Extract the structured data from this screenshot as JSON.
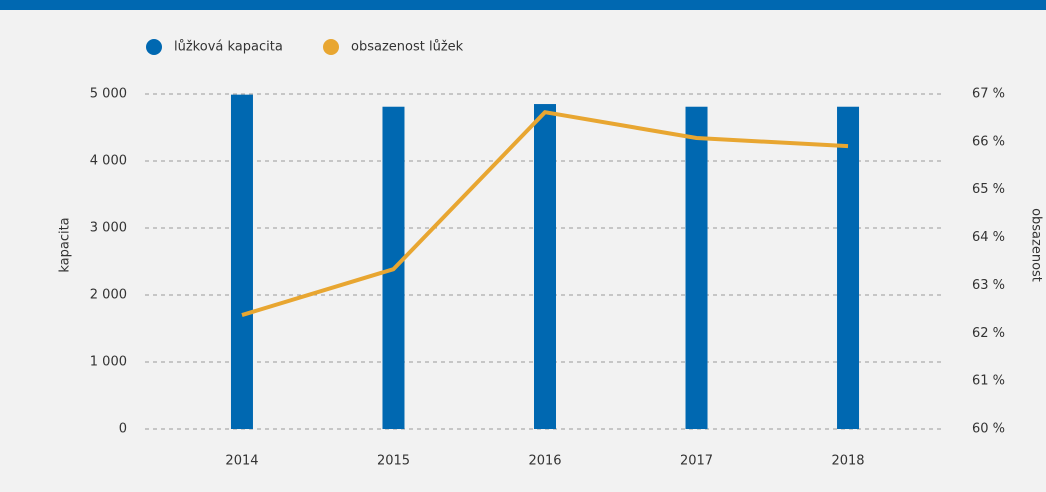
{
  "chart_data": {
    "type": "bar",
    "categories": [
      "2014",
      "2015",
      "2016",
      "2017",
      "2018"
    ],
    "series": [
      {
        "name": "lůžková kapacita",
        "type": "bar",
        "color": "#0068b1",
        "values": [
          4990,
          4810,
          4850,
          4810,
          4810
        ]
      },
      {
        "name": "obsazenost lůžek",
        "type": "line",
        "axis": "y2",
        "color": "#e8a631",
        "values": [
          62.38,
          63.34,
          66.62,
          66.08,
          65.91
        ]
      }
    ],
    "ylabel": "kapacita",
    "y2label": "obsazenost",
    "ylim": [
      0,
      5000
    ],
    "yticks": [
      0,
      {
        "value": 1000,
        "label": "1 000"
      },
      {
        "value": 2000,
        "label": "2 000"
      },
      {
        "value": 3000,
        "label": "3 000"
      },
      {
        "value": 4000,
        "label": "4 000"
      },
      {
        "value": 5000,
        "label": "5 000"
      }
    ],
    "y2lim": [
      60,
      67
    ],
    "y2ticks": [
      {
        "value": 60,
        "label": "60 %"
      },
      {
        "value": 61,
        "label": "61 %"
      },
      {
        "value": 62,
        "label": "62 %"
      },
      {
        "value": 63,
        "label": "63 %"
      },
      {
        "value": 64,
        "label": "64 %"
      },
      {
        "value": 65,
        "label": "65 %"
      },
      {
        "value": 66,
        "label": "66 %"
      },
      {
        "value": 67,
        "label": "67 %"
      }
    ],
    "grid": true,
    "legend": "top"
  }
}
